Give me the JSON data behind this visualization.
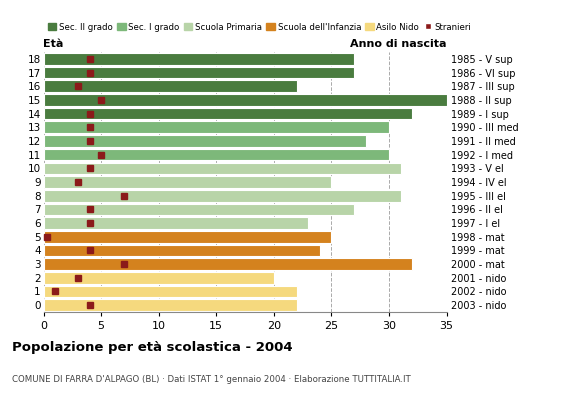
{
  "ages": [
    18,
    17,
    16,
    15,
    14,
    13,
    12,
    11,
    10,
    9,
    8,
    7,
    6,
    5,
    4,
    3,
    2,
    1,
    0
  ],
  "bar_values": [
    27,
    27,
    22,
    35,
    32,
    30,
    28,
    30,
    31,
    25,
    31,
    27,
    23,
    25,
    24,
    32,
    20,
    22,
    22
  ],
  "stranieri": [
    4,
    4,
    3,
    5,
    4,
    4,
    4,
    5,
    4,
    3,
    7,
    4,
    4,
    0.3,
    4,
    7,
    3,
    1,
    4
  ],
  "anno_nascita": [
    "1985 - V sup",
    "1986 - VI sup",
    "1987 - III sup",
    "1988 - II sup",
    "1989 - I sup",
    "1990 - III med",
    "1991 - II med",
    "1992 - I med",
    "1993 - V el",
    "1994 - IV el",
    "1995 - III el",
    "1996 - II el",
    "1997 - I el",
    "1998 - mat",
    "1999 - mat",
    "2000 - mat",
    "2001 - nido",
    "2002 - nido",
    "2003 - nido"
  ],
  "bar_colors": [
    "#4a7c3f",
    "#4a7c3f",
    "#4a7c3f",
    "#4a7c3f",
    "#4a7c3f",
    "#7db87a",
    "#7db87a",
    "#7db87a",
    "#b8d4a8",
    "#b8d4a8",
    "#b8d4a8",
    "#b8d4a8",
    "#b8d4a8",
    "#d4821e",
    "#d4821e",
    "#d4821e",
    "#f5d97e",
    "#f5d97e",
    "#f5d97e"
  ],
  "legend_labels": [
    "Sec. II grado",
    "Sec. I grado",
    "Scuola Primaria",
    "Scuola dell'Infanzia",
    "Asilo Nido",
    "Stranieri"
  ],
  "legend_colors": [
    "#4a7c3f",
    "#7db87a",
    "#b8d4a8",
    "#d4821e",
    "#f5d97e",
    "#8b1a1a"
  ],
  "title": "Popolazione per età scolastica - 2004",
  "subtitle": "COMUNE DI FARRA D'ALPAGO (BL) · Dati ISTAT 1° gennaio 2004 · Elaborazione TUTTITALIA.IT",
  "xlabel_eta": "Età",
  "xlabel_anno": "Anno di nascita",
  "xlim": [
    0,
    35
  ],
  "xticks": [
    0,
    5,
    10,
    15,
    20,
    25,
    30,
    35
  ],
  "stranieri_color": "#8b1a1a",
  "bg_color": "#ffffff"
}
